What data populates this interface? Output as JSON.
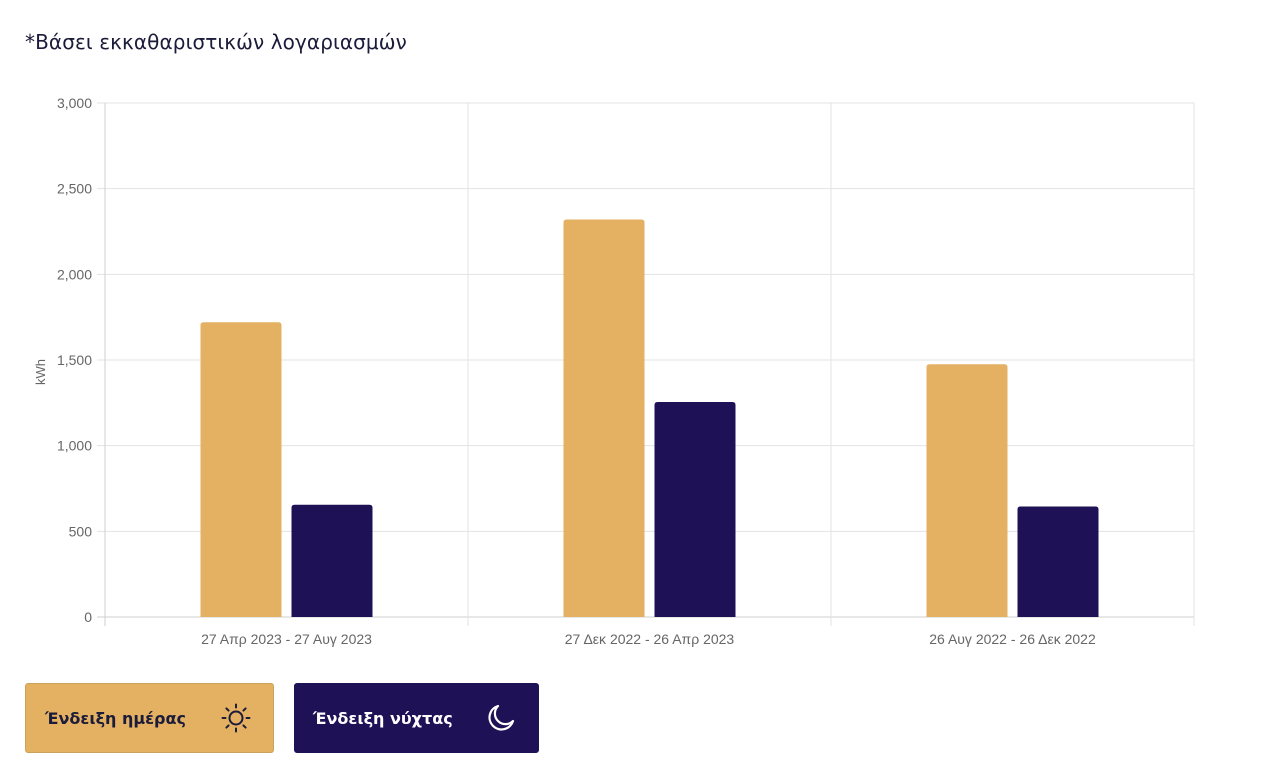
{
  "note": "*Βάσει εκκαθαριστικών λογαριασμών",
  "legend": {
    "day_label": "Ένδειξη ημέρας",
    "day_icon": "sun-icon",
    "night_label": "Ένδειξη νύχτας",
    "night_icon": "moon-icon"
  },
  "colors": {
    "day": "#e4b162",
    "night": "#1e1156",
    "grid": "#e3e3e3",
    "axis_text": "#666666"
  },
  "chart_data": {
    "type": "bar",
    "categories": [
      "27 Απρ 2023 - 27 Αυγ 2023",
      "27 Δεκ 2022 - 26 Απρ 2023",
      "26 Αυγ 2022 - 26 Δεκ 2022"
    ],
    "series": [
      {
        "name": "Ένδειξη ημέρας",
        "values": [
          1720,
          2320,
          1475
        ]
      },
      {
        "name": "Ένδειξη νύχτας",
        "values": [
          655,
          1255,
          645
        ]
      }
    ],
    "ylabel": "kWh",
    "xlabel": "",
    "ylim": [
      0,
      3000
    ],
    "yticks": [
      "0",
      "500",
      "1,000",
      "1,500",
      "2,000",
      "2,500",
      "3,000"
    ],
    "grid": true,
    "legend": "bottom-left"
  }
}
